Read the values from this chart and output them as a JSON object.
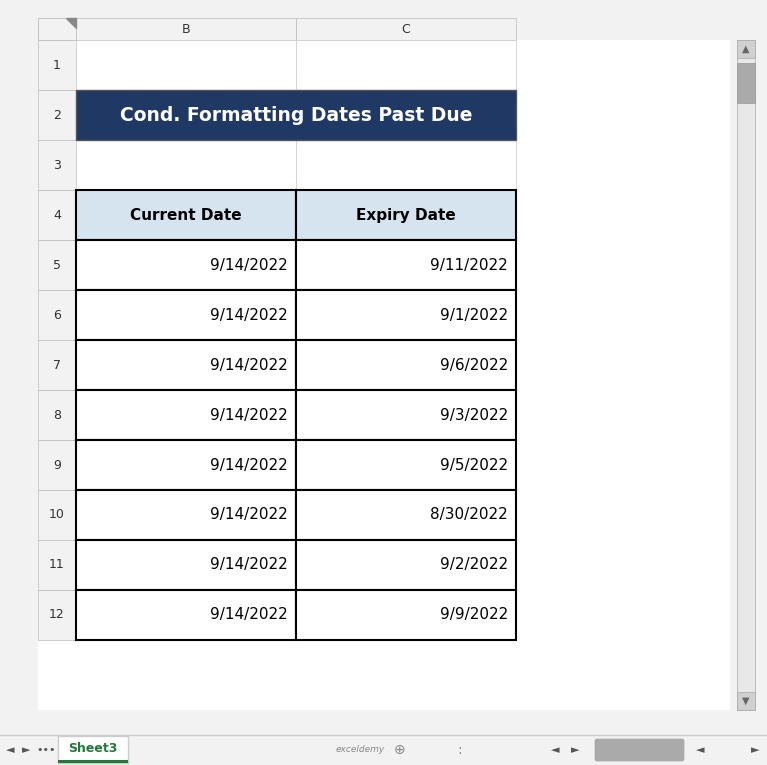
{
  "title": "Cond. Formatting Dates Past Due",
  "title_bg": "#1F3864",
  "title_text_color": "#FFFFFF",
  "header_bg": "#D6E4F0",
  "header_text_color": "#000000",
  "col_headers": [
    "Current Date",
    "Expiry Date"
  ],
  "current_dates": [
    "9/14/2022",
    "9/14/2022",
    "9/14/2022",
    "9/14/2022",
    "9/14/2022",
    "9/14/2022",
    "9/14/2022",
    "9/14/2022"
  ],
  "expiry_dates": [
    "9/11/2022",
    "9/1/2022",
    "9/6/2022",
    "9/3/2022",
    "9/5/2022",
    "8/30/2022",
    "9/2/2022",
    "9/9/2022"
  ],
  "excel_bg": "#F2F2F2",
  "border_color": "#000000",
  "data_text_color": "#000000",
  "tab_text_color": "#1F7A3A",
  "figsize": [
    7.67,
    7.65
  ],
  "dpi": 100
}
